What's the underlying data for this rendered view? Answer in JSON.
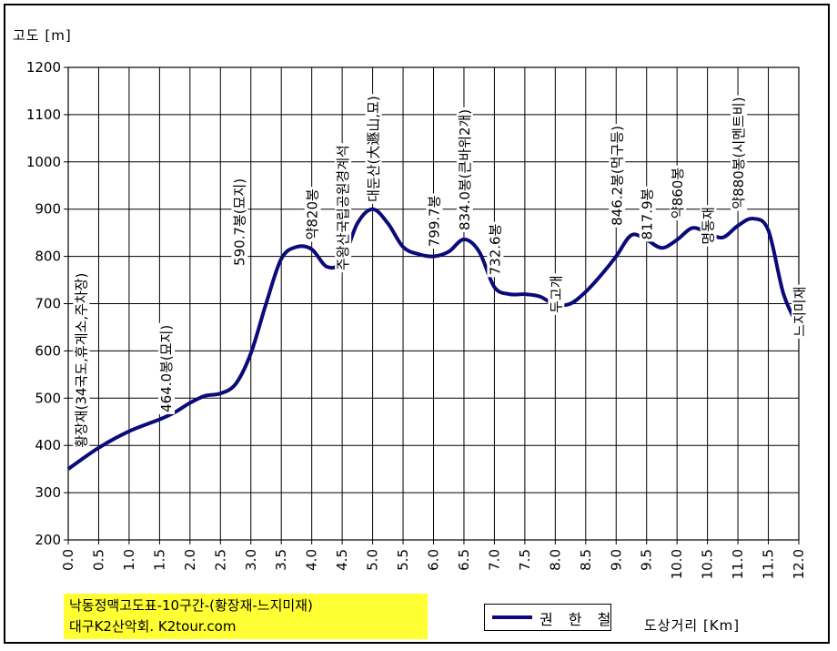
{
  "chart_data": {
    "type": "line",
    "ylabel": "고도 [m]",
    "xlabel": "도상거리 [Km]",
    "ylim": [
      200,
      1200
    ],
    "xlim": [
      0,
      12
    ],
    "yticks": [
      200,
      300,
      400,
      500,
      600,
      700,
      800,
      900,
      1000,
      1100,
      1200
    ],
    "xticks": [
      "0.0",
      "0.5",
      "1.0",
      "1.5",
      "2.0",
      "2.5",
      "3.0",
      "3.5",
      "4.0",
      "4.5",
      "5.0",
      "5.5",
      "6.0",
      "6.5",
      "7.0",
      "7.5",
      "8.0",
      "8.5",
      "9.0",
      "9.5",
      "10.0",
      "10.5",
      "11.0",
      "11.5",
      "12.0"
    ],
    "grid": true,
    "series": [
      {
        "name": "권 한 철",
        "color": "#0a0a7a",
        "x": [
          0.0,
          0.5,
          1.0,
          1.5,
          1.75,
          2.0,
          2.25,
          2.5,
          2.75,
          3.0,
          3.25,
          3.5,
          3.75,
          4.0,
          4.25,
          4.5,
          4.75,
          5.0,
          5.25,
          5.5,
          5.75,
          6.0,
          6.25,
          6.5,
          6.75,
          7.0,
          7.25,
          7.5,
          7.75,
          8.0,
          8.25,
          8.5,
          8.75,
          9.0,
          9.25,
          9.5,
          9.75,
          10.0,
          10.25,
          10.5,
          10.75,
          11.0,
          11.25,
          11.5,
          11.75,
          12.0
        ],
        "y": [
          350,
          395,
          430,
          455,
          470,
          490,
          505,
          510,
          530,
          595,
          700,
          795,
          820,
          815,
          778,
          790,
          870,
          900,
          870,
          820,
          805,
          800,
          810,
          836,
          810,
          735,
          720,
          720,
          715,
          698,
          700,
          725,
          760,
          800,
          845,
          835,
          818,
          835,
          860,
          850,
          840,
          865,
          880,
          855,
          720,
          650
        ]
      }
    ],
    "annotations": [
      {
        "text": "황장재(34국도,휴게소,주차장)",
        "x": 0.2,
        "y": 395
      },
      {
        "text": "464.0봉(묘지)",
        "x": 1.6,
        "y": 470
      },
      {
        "text": "590.7봉(묘지)",
        "x": 2.8,
        "y": 780
      },
      {
        "text": "약820봉",
        "x": 4.0,
        "y": 835
      },
      {
        "text": "주왕산국립공원경계석",
        "x": 4.5,
        "y": 770
      },
      {
        "text": "대둔산(大遯山,묘)",
        "x": 5.0,
        "y": 915
      },
      {
        "text": "799.7봉",
        "x": 6.0,
        "y": 820
      },
      {
        "text": "834.0봉(큰바위2개)",
        "x": 6.5,
        "y": 855
      },
      {
        "text": "732.6봉",
        "x": 7.0,
        "y": 760
      },
      {
        "text": "두고개",
        "x": 8.0,
        "y": 680
      },
      {
        "text": "846.2봉(먹구등)",
        "x": 9.0,
        "y": 865
      },
      {
        "text": "817.9봉",
        "x": 9.5,
        "y": 835
      },
      {
        "text": "약860봉",
        "x": 10.0,
        "y": 880
      },
      {
        "text": "명동재",
        "x": 10.5,
        "y": 825
      },
      {
        "text": "약880봉(시멘트비)",
        "x": 11.0,
        "y": 900
      },
      {
        "text": "느지미재",
        "x": 12.0,
        "y": 630
      }
    ]
  },
  "title_box": {
    "line1": "낙동정맥고도표-10구간-(황장재-느지미재)",
    "line2": "대구K2산악회. K2tour.com",
    "background": "#ffff33"
  },
  "legend": {
    "label": "권 한 철"
  }
}
